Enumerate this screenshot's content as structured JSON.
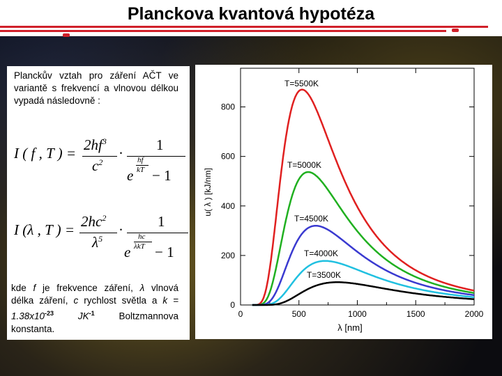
{
  "slide": {
    "title": "Planckova kvantová hypotéza",
    "intro": "Planckův vztah pro záření AČT ve variantě s frekvencí a vlnovou délkou vypadá následovně :",
    "eq1": {
      "lhs": "I ( f , T ) =",
      "num": "2hf",
      "num_sup": "3",
      "den": "c",
      "den_sup": "2",
      "dot": "·",
      "frac2_num": "1",
      "exp_base": "e",
      "exp_num": "hf",
      "exp_den": "kT",
      "minus": "− 1"
    },
    "eq2": {
      "lhs": "I (λ , T ) =",
      "num": "2hc",
      "num_sup": "2",
      "den": "λ",
      "den_sup": "5",
      "dot": "·",
      "frac2_num": "1",
      "exp_base": "e",
      "exp_num": "hc",
      "exp_den": "λkT",
      "minus": "− 1"
    },
    "outro": {
      "p1": "kde ",
      "f": "f",
      "p2": " je frekvence záření, ",
      "lambda": "λ",
      "p3": " vlnová délka záření, ",
      "c": "c",
      "p4": " rychlost světla a ",
      "k": "k",
      "p5": " = ",
      "value": "1.38x10",
      "exp1": "-23",
      "unit": " JK",
      "exp2": "-1",
      "p6": " Boltzmannova konstanta."
    }
  },
  "chart_data": {
    "type": "line",
    "xlabel": "λ [nm]",
    "ylabel": "u( λ )  [kJ/nm]",
    "xlim": [
      0,
      2000
    ],
    "ylim": [
      0,
      900
    ],
    "x_ticks": [
      "0",
      "500",
      "1000",
      "1500",
      "2000"
    ],
    "y_ticks": [
      "0",
      "200",
      "400",
      "600",
      "800"
    ],
    "series": [
      {
        "name": "T=5500K",
        "T": 5500,
        "color": "#e02020",
        "peak": 870
      },
      {
        "name": "T=5000K",
        "T": 5000,
        "color": "#20b020",
        "peak": 537
      },
      {
        "name": "T=4500K",
        "T": 4500,
        "color": "#3a3ad0",
        "peak": 320
      },
      {
        "name": "T=4000K",
        "T": 4000,
        "color": "#20c0e0",
        "peak": 178
      },
      {
        "name": "T=3500K",
        "T": 3500,
        "color": "#000000",
        "peak": 92
      }
    ]
  }
}
